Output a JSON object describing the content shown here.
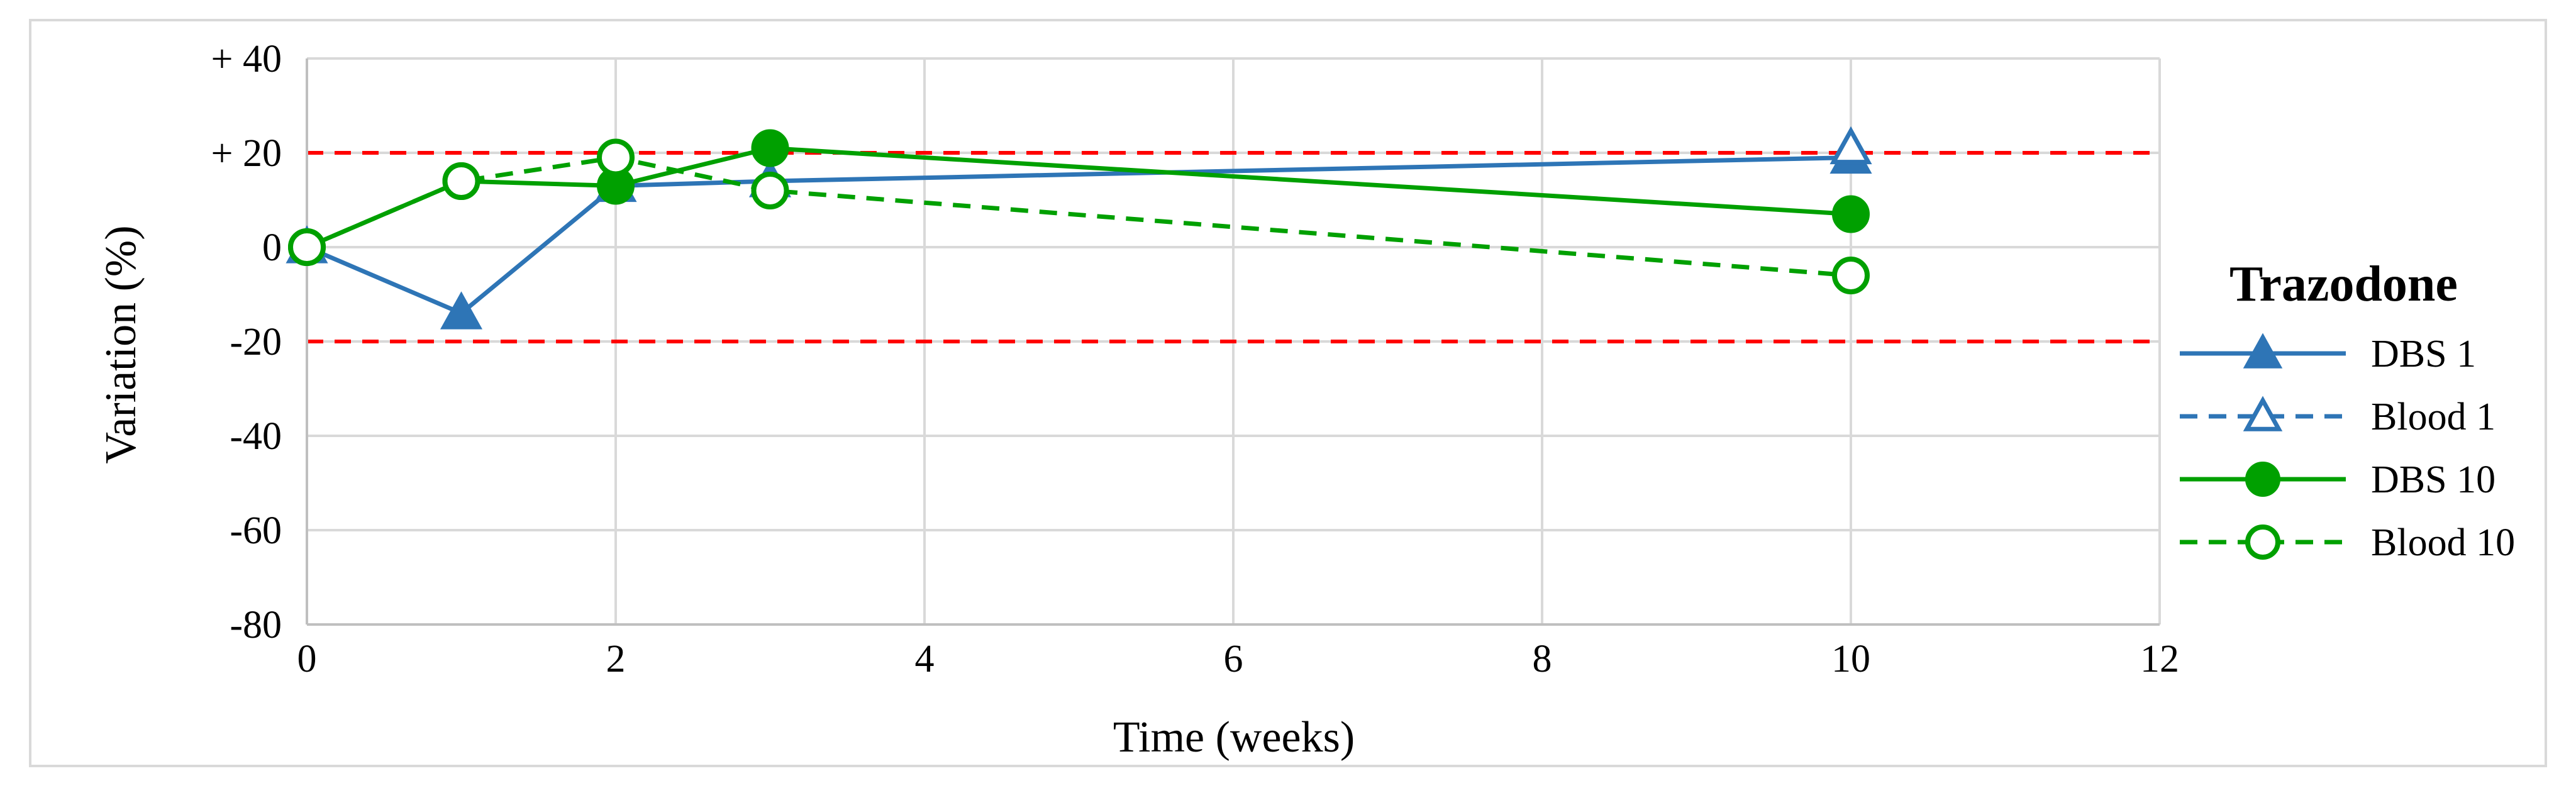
{
  "chart_data": {
    "type": "line",
    "xlabel": "Time (weeks)",
    "ylabel": "Variation (%)",
    "xlim": [
      0,
      12
    ],
    "ylim": [
      -80,
      40
    ],
    "x_ticks": [
      "0",
      "2",
      "4",
      "6",
      "8",
      "10",
      "12"
    ],
    "x_tick_values": [
      0,
      2,
      4,
      6,
      8,
      10,
      12
    ],
    "y_ticks": [
      "+ 40",
      "+ 20",
      "0",
      "-20",
      "-40",
      "-60",
      "-80"
    ],
    "y_tick_values": [
      40,
      20,
      0,
      -20,
      -40,
      -60,
      -80
    ],
    "grid": true,
    "reference_lines": [
      {
        "y": 20,
        "style": "dashed",
        "color": "#ff0000"
      },
      {
        "y": -20,
        "style": "dashed",
        "color": "#ff0000"
      }
    ],
    "legend": {
      "title": "Trazodone",
      "position": "right"
    },
    "series": [
      {
        "name": "DBS 1",
        "x": [
          0,
          1,
          2,
          3,
          10
        ],
        "y": [
          0,
          -14,
          13,
          14,
          19
        ],
        "color": "#2e75b6",
        "line": "solid",
        "marker": "triangle",
        "filled": true
      },
      {
        "name": "Blood 1",
        "x": [
          10
        ],
        "y": [
          21
        ],
        "color": "#2e75b6",
        "line": "dashed",
        "marker": "triangle",
        "filled": false
      },
      {
        "name": "DBS 10",
        "x": [
          0,
          1,
          2,
          3,
          10
        ],
        "y": [
          0,
          14,
          13,
          21,
          7
        ],
        "color": "#00a000",
        "line": "solid",
        "marker": "circle",
        "filled": true
      },
      {
        "name": "Blood 10",
        "x": [
          0,
          1,
          2,
          3,
          10
        ],
        "y": [
          0,
          14,
          19,
          12,
          -6
        ],
        "color": "#00a000",
        "line": "dashed",
        "marker": "circle",
        "filled": false
      }
    ]
  }
}
